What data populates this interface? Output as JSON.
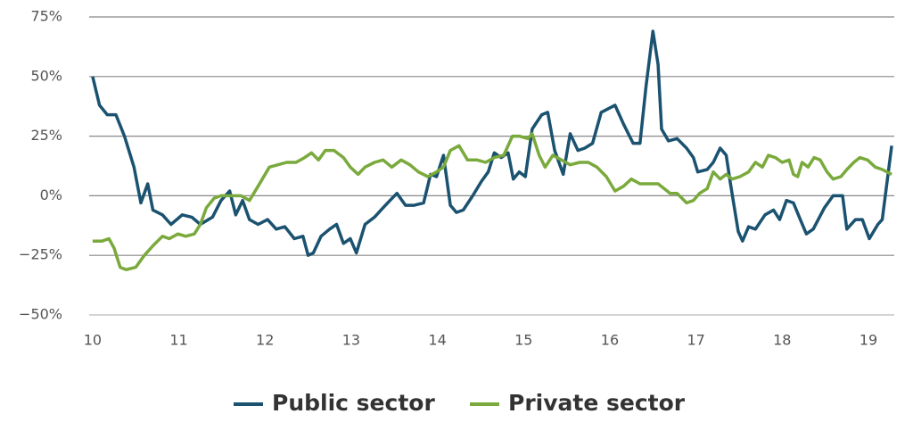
{
  "chart_data": {
    "type": "line",
    "xlim": [
      9.96,
      19.3
    ],
    "xticks": [
      10,
      11,
      12,
      13,
      14,
      15,
      16,
      17,
      18,
      19
    ],
    "ylim": [
      -50,
      75
    ],
    "yticks": [
      {
        "value": -50,
        "label": "−50%"
      },
      {
        "value": -25,
        "label": "−25%"
      },
      {
        "value": 0,
        "label": "0%"
      },
      {
        "value": 25,
        "label": "25%"
      },
      {
        "value": 50,
        "label": "50%"
      },
      {
        "value": 75,
        "label": "75%"
      }
    ],
    "grid": true,
    "legend": "bottom",
    "series": [
      {
        "name": "Public sector",
        "color": "#1a5270",
        "x": [
          10.0,
          10.08,
          10.17,
          10.27,
          10.37,
          10.48,
          10.56,
          10.64,
          10.7,
          10.81,
          10.91,
          11.04,
          11.15,
          11.25,
          11.39,
          11.49,
          11.59,
          11.66,
          11.74,
          11.82,
          11.92,
          12.03,
          12.13,
          12.23,
          12.34,
          12.44,
          12.5,
          12.56,
          12.65,
          12.75,
          12.83,
          12.91,
          12.99,
          13.06,
          13.16,
          13.27,
          13.37,
          13.45,
          13.53,
          13.63,
          13.73,
          13.84,
          13.92,
          13.99,
          14.07,
          14.15,
          14.22,
          14.3,
          14.41,
          14.51,
          14.59,
          14.66,
          14.74,
          14.82,
          14.88,
          14.95,
          15.02,
          15.1,
          15.21,
          15.28,
          15.36,
          15.46,
          15.54,
          15.63,
          15.71,
          15.8,
          15.9,
          16.06,
          16.16,
          16.27,
          16.35,
          16.42,
          16.5,
          16.56,
          16.6,
          16.68,
          16.78,
          16.89,
          16.97,
          17.02,
          17.13,
          17.2,
          17.28,
          17.35,
          17.4,
          17.49,
          17.54,
          17.61,
          17.69,
          17.8,
          17.9,
          17.97,
          18.05,
          18.13,
          18.21,
          18.28,
          18.36,
          18.49,
          18.59,
          18.7,
          18.75,
          18.85,
          18.93,
          19.01,
          19.11,
          19.16,
          19.27
        ],
        "values": [
          50,
          38,
          34,
          34,
          25,
          12,
          -3,
          5,
          -6,
          -8,
          -12,
          -8,
          -9,
          -12,
          -9,
          -2,
          2,
          -8,
          -2,
          -10,
          -12,
          -10,
          -14,
          -13,
          -18,
          -17,
          -25,
          -24,
          -17,
          -14,
          -12,
          -20,
          -18,
          -24,
          -12,
          -9,
          -5,
          -2,
          1,
          -4,
          -4,
          -3,
          9,
          8,
          17,
          -4,
          -7,
          -6,
          0,
          6,
          10,
          18,
          16,
          18,
          7,
          10,
          8,
          28,
          34,
          35,
          19,
          9,
          26,
          19,
          20,
          22,
          35,
          38,
          30,
          22,
          22,
          46,
          69,
          55,
          28,
          23,
          24,
          20,
          16,
          10,
          11,
          14,
          20,
          17,
          5,
          -15,
          -19,
          -13,
          -14,
          -8,
          -6,
          -10,
          -2,
          -3,
          -10,
          -16,
          -14,
          -5,
          0,
          0,
          -14,
          -10,
          -10,
          -18,
          -12,
          -10,
          21
        ]
      },
      {
        "name": "Private sector",
        "color": "#7aa93c",
        "x": [
          10.0,
          10.11,
          10.19,
          10.25,
          10.32,
          10.39,
          10.5,
          10.6,
          10.7,
          10.81,
          10.89,
          10.99,
          11.08,
          11.18,
          11.25,
          11.32,
          11.41,
          11.49,
          11.59,
          11.72,
          11.82,
          11.92,
          12.05,
          12.15,
          12.25,
          12.36,
          12.46,
          12.54,
          12.62,
          12.7,
          12.8,
          12.91,
          12.99,
          13.08,
          13.16,
          13.27,
          13.37,
          13.47,
          13.58,
          13.68,
          13.78,
          13.89,
          13.99,
          14.07,
          14.15,
          14.25,
          14.35,
          14.46,
          14.56,
          14.66,
          14.77,
          14.87,
          14.95,
          15.05,
          15.1,
          15.18,
          15.25,
          15.34,
          15.44,
          15.54,
          15.65,
          15.75,
          15.85,
          15.96,
          16.06,
          16.16,
          16.25,
          16.35,
          16.45,
          16.56,
          16.63,
          16.7,
          16.78,
          16.89,
          16.97,
          17.04,
          17.13,
          17.2,
          17.28,
          17.35,
          17.42,
          17.51,
          17.61,
          17.69,
          17.77,
          17.84,
          17.92,
          18.0,
          18.08,
          18.13,
          18.18,
          18.23,
          18.3,
          18.37,
          18.44,
          18.52,
          18.59,
          18.68,
          18.75,
          18.83,
          18.9,
          18.99,
          19.08,
          19.16,
          19.27
        ],
        "values": [
          -19,
          -19,
          -18,
          -22,
          -30,
          -31,
          -30,
          -25,
          -21,
          -17,
          -18,
          -16,
          -17,
          -16,
          -12,
          -5,
          -1,
          0,
          0,
          0,
          -2,
          4,
          12,
          13,
          14,
          14,
          16,
          18,
          15,
          19,
          19,
          16,
          12,
          9,
          12,
          14,
          15,
          12,
          15,
          13,
          10,
          8,
          10,
          12,
          19,
          21,
          15,
          15,
          14,
          16,
          17,
          25,
          25,
          24,
          26,
          17,
          12,
          17,
          15,
          13,
          14,
          14,
          12,
          8,
          2,
          4,
          7,
          5,
          5,
          5,
          3,
          1,
          1,
          -3,
          -2,
          1,
          3,
          10,
          7,
          9,
          7,
          8,
          10,
          14,
          12,
          17,
          16,
          14,
          15,
          9,
          8,
          14,
          12,
          16,
          15,
          10,
          7,
          8,
          11,
          14,
          16,
          15,
          12,
          11,
          9
        ]
      }
    ]
  }
}
